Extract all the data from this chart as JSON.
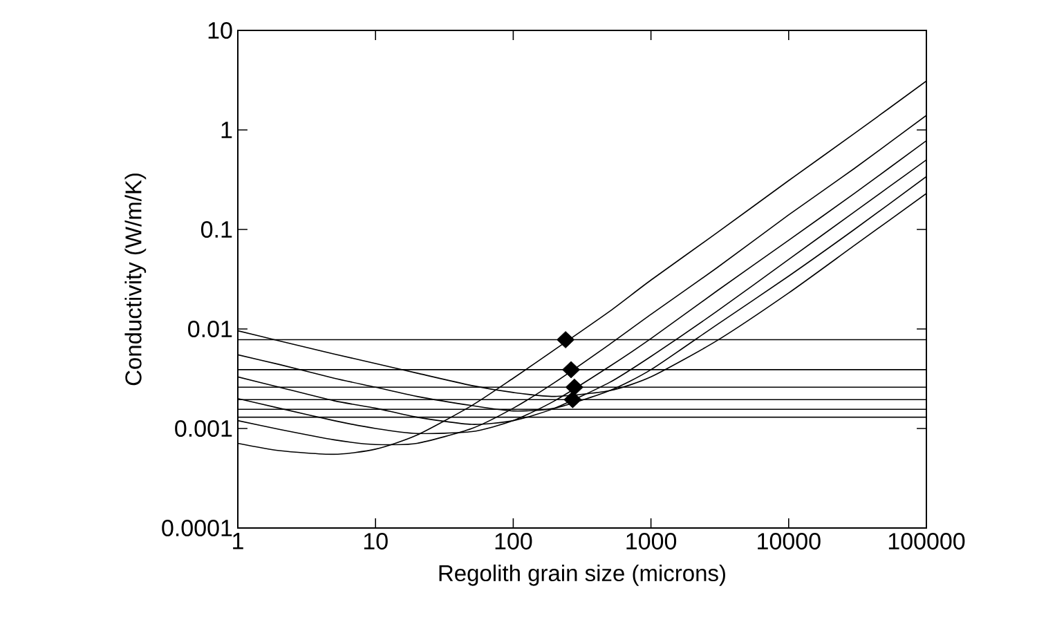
{
  "chart_data": {
    "type": "line",
    "xlabel": "Regolith grain size (microns)",
    "ylabel": "Conductivity (W/m/K)",
    "log": "xy",
    "line_style": "solid",
    "marker": "none",
    "xlim": [
      1,
      100000
    ],
    "ylim": [
      0.0001,
      10
    ],
    "xticks": [
      1,
      10,
      100,
      1000,
      10000,
      100000
    ],
    "yticks": [
      0.0001,
      0.001,
      0.01,
      0.1,
      1,
      10
    ],
    "series": [
      {
        "color": "#000000",
        "x": [
          1,
          2,
          5,
          10,
          20,
          50,
          100,
          200,
          500,
          1000,
          3000,
          10000,
          30000,
          100000
        ],
        "values": [
          0.00071,
          0.0006,
          0.00055,
          0.00062,
          0.00086,
          0.0017,
          0.0032,
          0.0062,
          0.015,
          0.031,
          0.092,
          0.31,
          0.92,
          3.1
        ]
      },
      {
        "color": "#000000",
        "x": [
          1,
          2,
          5,
          10,
          20,
          50,
          100,
          200,
          500,
          1000,
          3000,
          10000,
          30000,
          100000
        ],
        "values": [
          0.0012,
          0.00098,
          0.00077,
          0.00069,
          0.00071,
          0.001,
          0.0016,
          0.0029,
          0.007,
          0.014,
          0.041,
          0.14,
          0.41,
          1.4
        ]
      },
      {
        "color": "#000000",
        "x": [
          1,
          2,
          5,
          10,
          20,
          50,
          100,
          200,
          500,
          1000,
          3000,
          10000,
          30000,
          100000
        ],
        "values": [
          0.002,
          0.0016,
          0.0012,
          0.001,
          0.00089,
          0.00093,
          0.0012,
          0.0019,
          0.0042,
          0.008,
          0.024,
          0.078,
          0.23,
          0.78
        ]
      },
      {
        "color": "#000000",
        "x": [
          1,
          2,
          5,
          10,
          20,
          50,
          100,
          200,
          500,
          1000,
          3000,
          10000,
          30000,
          100000
        ],
        "values": [
          0.0033,
          0.0026,
          0.0019,
          0.0016,
          0.0013,
          0.0011,
          0.0012,
          0.0016,
          0.0029,
          0.0053,
          0.015,
          0.05,
          0.15,
          0.5
        ]
      },
      {
        "color": "#000000",
        "x": [
          1,
          2,
          5,
          10,
          20,
          50,
          100,
          200,
          500,
          1000,
          3000,
          10000,
          30000,
          100000
        ],
        "values": [
          0.0055,
          0.0044,
          0.0032,
          0.0026,
          0.0021,
          0.0017,
          0.0015,
          0.0016,
          0.0024,
          0.0039,
          0.011,
          0.034,
          0.1,
          0.34
        ]
      },
      {
        "color": "#000000",
        "x": [
          1,
          2,
          5,
          10,
          20,
          50,
          100,
          200,
          500,
          1000,
          3000,
          10000,
          30000,
          100000
        ],
        "values": [
          0.0096,
          0.0076,
          0.0056,
          0.0045,
          0.0036,
          0.0027,
          0.0023,
          0.0021,
          0.0024,
          0.0033,
          0.0076,
          0.023,
          0.069,
          0.23
        ]
      },
      {
        "type": "scatter",
        "marker": "diamond",
        "color": "#000000",
        "x": [
          240,
          263,
          278,
          270
        ],
        "values": [
          0.0078,
          0.0039,
          0.0026,
          0.00195
        ]
      }
    ],
    "ref_lines": [
      {
        "axis": "y",
        "value": 0.0078,
        "color": "#000000"
      },
      {
        "axis": "y",
        "value": 0.0039,
        "color": "#000000"
      },
      {
        "axis": "y",
        "value": 0.0026,
        "color": "#000000"
      },
      {
        "axis": "y",
        "value": 0.00195,
        "color": "#000000"
      },
      {
        "axis": "y",
        "value": 0.00156,
        "color": "#000000"
      },
      {
        "axis": "y",
        "value": 0.0013,
        "color": "#000000"
      }
    ]
  }
}
